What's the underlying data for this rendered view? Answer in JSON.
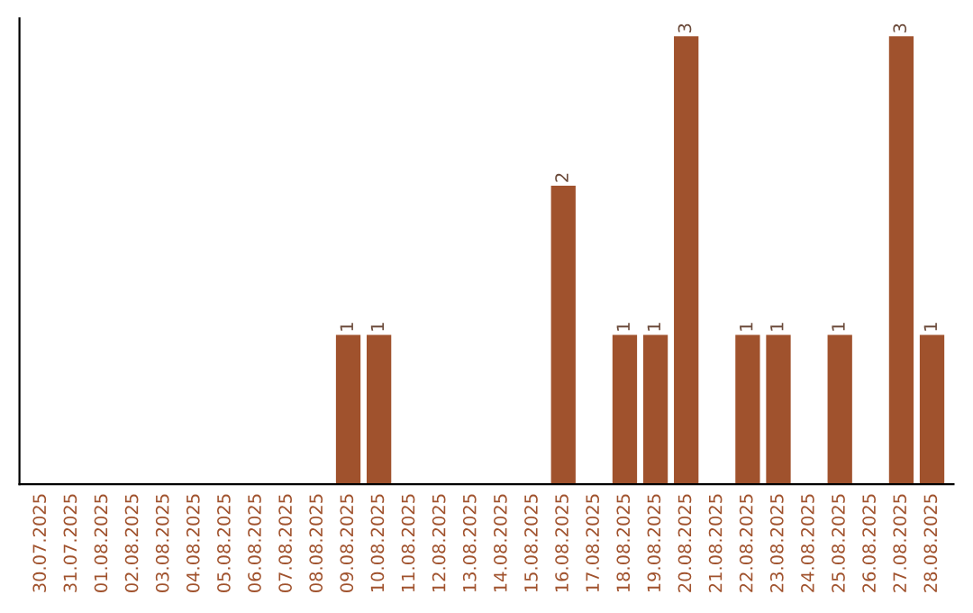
{
  "chart_data": {
    "type": "bar",
    "categories": [
      "30.07.2025",
      "31.07.2025",
      "01.08.2025",
      "02.08.2025",
      "03.08.2025",
      "04.08.2025",
      "05.08.2025",
      "06.08.2025",
      "07.08.2025",
      "08.08.2025",
      "09.08.2025",
      "10.08.2025",
      "11.08.2025",
      "12.08.2025",
      "13.08.2025",
      "14.08.2025",
      "15.08.2025",
      "16.08.2025",
      "17.08.2025",
      "18.08.2025",
      "19.08.2025",
      "20.08.2025",
      "21.08.2025",
      "22.08.2025",
      "23.08.2025",
      "24.08.2025",
      "25.08.2025",
      "26.08.2025",
      "27.08.2025",
      "28.08.2025"
    ],
    "values": [
      0,
      0,
      0,
      0,
      0,
      0,
      0,
      0,
      0,
      0,
      1,
      1,
      0,
      0,
      0,
      0,
      0,
      2,
      0,
      1,
      1,
      3,
      0,
      1,
      1,
      0,
      1,
      0,
      3,
      1
    ],
    "value_labels": [
      null,
      null,
      null,
      null,
      null,
      null,
      null,
      null,
      null,
      null,
      "1",
      "1",
      null,
      null,
      null,
      null,
      null,
      "2",
      null,
      "1",
      "1",
      "3",
      null,
      "1",
      "1",
      null,
      "1",
      null,
      "3",
      "1"
    ],
    "color": "#a0522d",
    "tick_labels": "x",
    "grid": false,
    "legend": false
  }
}
